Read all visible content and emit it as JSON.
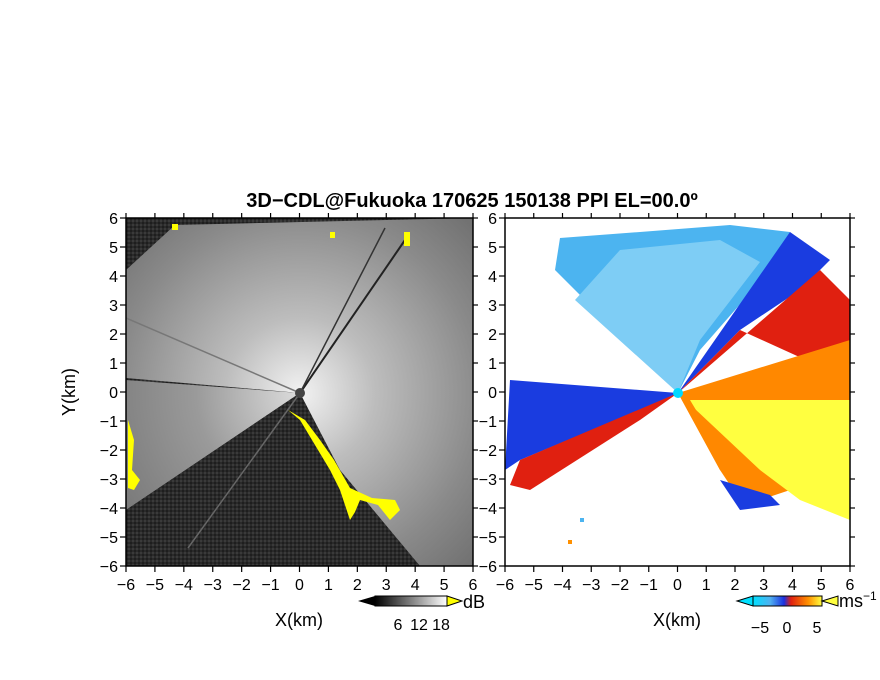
{
  "chart_data": [
    {
      "type": "heatmap",
      "title": "3D−CDL@Fukuoka 170625 150138 PPI EL=00.0º",
      "panel": "left",
      "xlabel": "X(km)",
      "ylabel": "Y(km)",
      "xlim": [
        -6,
        6
      ],
      "ylim": [
        -6,
        6
      ],
      "xticks": [
        "−6",
        "−5",
        "−4",
        "−3",
        "−2",
        "−1",
        "0",
        "1",
        "2",
        "3",
        "4",
        "5",
        "6"
      ],
      "yticks": [
        "−6",
        "−5",
        "−4",
        "−3",
        "−2",
        "−1",
        "0",
        "1",
        "2",
        "3",
        "4",
        "5",
        "6"
      ],
      "colorbar": {
        "unit": "dB",
        "ticks": [
          "6",
          "12",
          "18"
        ],
        "range": [
          0,
          21
        ]
      },
      "colors": {
        "low": "#1a1a1a",
        "high": "#ffffff",
        "flag": "#ffff00"
      }
    },
    {
      "type": "heatmap",
      "panel": "right",
      "xlabel": "X(km)",
      "xlim": [
        -6,
        6
      ],
      "ylim": [
        -6,
        6
      ],
      "xticks": [
        "−6",
        "−5",
        "−4",
        "−3",
        "−2",
        "−1",
        "0",
        "1",
        "2",
        "3",
        "4",
        "5",
        "6"
      ],
      "yticks": [
        "−6",
        "−5",
        "−4",
        "−3",
        "−2",
        "−1",
        "0",
        "1",
        "2",
        "3",
        "4",
        "5",
        "6"
      ],
      "colorbar": {
        "unit": "ms",
        "unit_exp": "−1",
        "ticks": [
          "−5",
          "0",
          "5"
        ],
        "range": [
          -7,
          7
        ]
      },
      "colors": {
        "cyan": "#00d8ff",
        "skyblue": "#4cb4f0",
        "blue": "#1a3ce0",
        "red": "#e02010",
        "orange": "#ff8800",
        "yellow": "#ffff40"
      }
    }
  ]
}
